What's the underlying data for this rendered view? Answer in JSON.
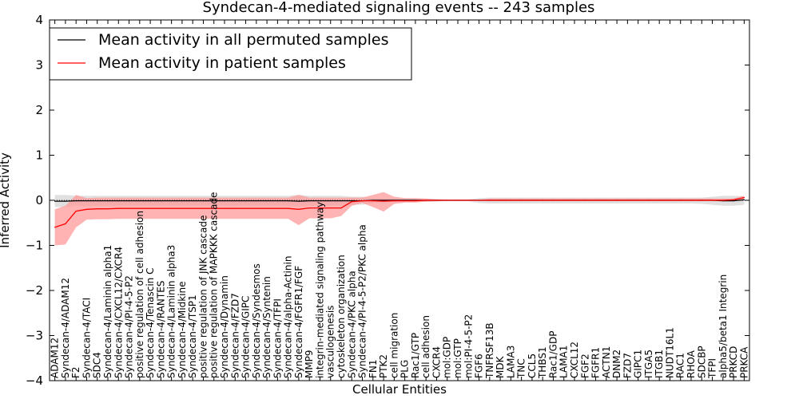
{
  "chart_data": {
    "type": "line",
    "title": "Syndecan-4-mediated signaling events -- 243 samples",
    "xlabel": "Cellular Entities",
    "ylabel": "Inferred Activity",
    "ylim": [
      -4,
      4
    ],
    "yticks": [
      -4,
      -3,
      -2,
      -1,
      0,
      1,
      2,
      3,
      4
    ],
    "ytick_labels": [
      "−4",
      "−3",
      "−2",
      "−1",
      "0",
      "1",
      "2",
      "3",
      "4"
    ],
    "grid": false,
    "legend_position": "top-left",
    "categories": [
      "ADAM12",
      "Syndecan-4/ADAM12",
      "F2",
      "Syndecan-4/TACI",
      "SDC4",
      "Syndecan-4/Laminin alpha1",
      "Syndecan-4/CXCL12/CXCR4",
      "Syndecan-4/PI-4-5-P2",
      "positive regulation of cell adhesion",
      "Syndecan-4/Tenascin C",
      "Syndecan-4/RANTES",
      "Syndecan-4/Laminin alpha3",
      "Syndecan-4/Midkine",
      "Syndecan-4/TSP1",
      "positive regulation of JNK cascade",
      "positive regulation of MAPKKK cascade",
      "Syndecan-4/Dynamin",
      "Syndecan-4/FZD7",
      "Syndecan-4/GIPC",
      "Syndecan-4/Syndesmos",
      "Syndecan-4/Syntenin",
      "Syndecan-4/TFPI",
      "Syndecan-4/alpha-Actinin",
      "Syndecan-4/FGFR1/FGF",
      "MMP9",
      "integrin-mediated signaling pathway",
      "vasculogenesis",
      "cytoskeleton organization",
      "Syndecan-4/PKC alpha",
      "Syndecan-4/PI-4-5-P2/PKC alpha",
      "FN1",
      "PTK2",
      "cell migration",
      "PLG",
      "Rac1/GTP",
      "cell adhesion",
      "CXCR4",
      "mol:GDP",
      "mol:GTP",
      "mol:PI-4-5-P2",
      "FGF6",
      "TNFRSF13B",
      "MDK",
      "LAMA3",
      "TNC",
      "CCL5",
      "THBS1",
      "Rac1/GDP",
      "LAMA1",
      "CXCL12",
      "FGF2",
      "FGFR1",
      "ACTN1",
      "DNM2",
      "FZD7",
      "GIPC1",
      "ITGA5",
      "ITGB1",
      "NUDT16L1",
      "RAC1",
      "RHOA",
      "SDCBP",
      "TFPI",
      "alpha5/beta1 Integrin",
      "PRKCD",
      "PRKCA"
    ],
    "series": [
      {
        "name": "Mean activity in all permuted samples",
        "color": "#000000",
        "values": [
          -0.02,
          -0.02,
          -0.01,
          -0.01,
          -0.01,
          -0.01,
          -0.01,
          -0.01,
          -0.01,
          -0.01,
          -0.01,
          -0.01,
          -0.01,
          -0.01,
          -0.01,
          -0.01,
          -0.01,
          -0.01,
          -0.01,
          -0.01,
          -0.01,
          -0.01,
          -0.01,
          -0.02,
          -0.01,
          -0.01,
          -0.01,
          -0.01,
          -0.01,
          -0.01,
          0.0,
          0.0,
          0.0,
          0.0,
          0.0,
          0.0,
          0.0,
          0.0,
          0.0,
          0.0,
          0.0,
          0.0,
          0.0,
          0.0,
          0.0,
          0.0,
          0.0,
          0.0,
          0.0,
          0.0,
          0.0,
          0.0,
          0.0,
          0.0,
          0.0,
          0.0,
          0.0,
          0.0,
          0.0,
          0.0,
          0.0,
          0.0,
          0.0,
          -0.01,
          -0.01,
          0.01
        ],
        "lower": [
          -0.15,
          -0.15,
          -0.12,
          -0.12,
          -0.12,
          -0.12,
          -0.12,
          -0.12,
          -0.12,
          -0.12,
          -0.12,
          -0.12,
          -0.12,
          -0.12,
          -0.12,
          -0.12,
          -0.12,
          -0.12,
          -0.12,
          -0.12,
          -0.12,
          -0.12,
          -0.12,
          -0.14,
          -0.12,
          -0.12,
          -0.12,
          -0.12,
          -0.1,
          -0.1,
          -0.06,
          -0.04,
          -0.04,
          -0.04,
          -0.04,
          -0.03,
          -0.03,
          -0.02,
          -0.02,
          -0.02,
          -0.06,
          -0.07,
          -0.07,
          -0.07,
          -0.07,
          -0.07,
          -0.07,
          -0.07,
          -0.07,
          -0.07,
          -0.07,
          -0.07,
          -0.07,
          -0.07,
          -0.07,
          -0.07,
          -0.07,
          -0.07,
          -0.07,
          -0.07,
          -0.07,
          -0.08,
          -0.1,
          -0.12,
          -0.12,
          -0.1
        ],
        "upper": [
          0.12,
          0.12,
          0.1,
          0.1,
          0.1,
          0.1,
          0.1,
          0.1,
          0.1,
          0.1,
          0.1,
          0.1,
          0.1,
          0.1,
          0.1,
          0.1,
          0.1,
          0.1,
          0.1,
          0.1,
          0.1,
          0.1,
          0.1,
          0.12,
          0.1,
          0.1,
          0.1,
          0.1,
          0.08,
          0.08,
          0.05,
          0.04,
          0.04,
          0.04,
          0.04,
          0.03,
          0.03,
          0.02,
          0.02,
          0.02,
          0.05,
          0.06,
          0.06,
          0.06,
          0.06,
          0.06,
          0.06,
          0.06,
          0.06,
          0.06,
          0.06,
          0.06,
          0.06,
          0.06,
          0.06,
          0.06,
          0.06,
          0.06,
          0.06,
          0.06,
          0.06,
          0.06,
          0.08,
          0.1,
          0.1,
          0.09
        ]
      },
      {
        "name": "Mean activity in patient samples",
        "color": "#ff0000",
        "fill": "#ff9999",
        "values": [
          -0.6,
          -0.52,
          -0.24,
          -0.2,
          -0.19,
          -0.19,
          -0.18,
          -0.18,
          -0.18,
          -0.18,
          -0.18,
          -0.18,
          -0.18,
          -0.18,
          -0.18,
          -0.18,
          -0.18,
          -0.18,
          -0.18,
          -0.18,
          -0.18,
          -0.18,
          -0.18,
          -0.2,
          -0.17,
          -0.17,
          -0.17,
          -0.17,
          -0.03,
          -0.01,
          -0.01,
          -0.02,
          -0.01,
          -0.01,
          -0.01,
          0.0,
          0.0,
          0.0,
          0.0,
          0.0,
          0.0,
          0.0,
          0.0,
          0.0,
          0.0,
          0.0,
          0.0,
          0.0,
          0.0,
          0.0,
          0.0,
          0.0,
          0.0,
          0.0,
          0.0,
          0.0,
          0.0,
          0.0,
          0.0,
          0.0,
          0.0,
          0.0,
          0.0,
          0.0,
          0.01,
          0.06
        ],
        "lower": [
          -1.0,
          -0.98,
          -0.6,
          -0.43,
          -0.42,
          -0.42,
          -0.41,
          -0.41,
          -0.41,
          -0.41,
          -0.41,
          -0.41,
          -0.41,
          -0.41,
          -0.41,
          -0.41,
          -0.41,
          -0.41,
          -0.41,
          -0.41,
          -0.41,
          -0.41,
          -0.41,
          -0.55,
          -0.4,
          -0.4,
          -0.4,
          -0.35,
          -0.12,
          -0.06,
          -0.15,
          -0.25,
          -0.08,
          -0.05,
          -0.05,
          -0.03,
          -0.02,
          -0.01,
          -0.01,
          -0.01,
          -0.01,
          -0.02,
          -0.02,
          -0.02,
          -0.02,
          -0.02,
          -0.02,
          -0.02,
          -0.02,
          -0.02,
          -0.02,
          -0.02,
          -0.02,
          -0.02,
          -0.02,
          -0.02,
          -0.02,
          -0.02,
          -0.02,
          -0.02,
          -0.02,
          -0.02,
          -0.02,
          -0.02,
          -0.02,
          0.01
        ],
        "upper": [
          -0.2,
          -0.12,
          0.12,
          0.05,
          0.06,
          0.06,
          0.06,
          0.06,
          0.06,
          0.06,
          0.06,
          0.06,
          0.06,
          0.06,
          0.06,
          0.06,
          0.06,
          0.06,
          0.06,
          0.06,
          0.06,
          0.06,
          0.06,
          0.12,
          0.06,
          0.06,
          0.06,
          0.06,
          0.06,
          0.06,
          0.12,
          0.18,
          0.08,
          0.05,
          0.05,
          0.04,
          0.02,
          0.01,
          0.01,
          0.01,
          0.01,
          0.04,
          0.04,
          0.04,
          0.04,
          0.04,
          0.04,
          0.04,
          0.04,
          0.04,
          0.04,
          0.04,
          0.04,
          0.04,
          0.04,
          0.04,
          0.04,
          0.04,
          0.04,
          0.04,
          0.04,
          0.04,
          0.04,
          0.04,
          0.04,
          0.1
        ]
      }
    ]
  }
}
